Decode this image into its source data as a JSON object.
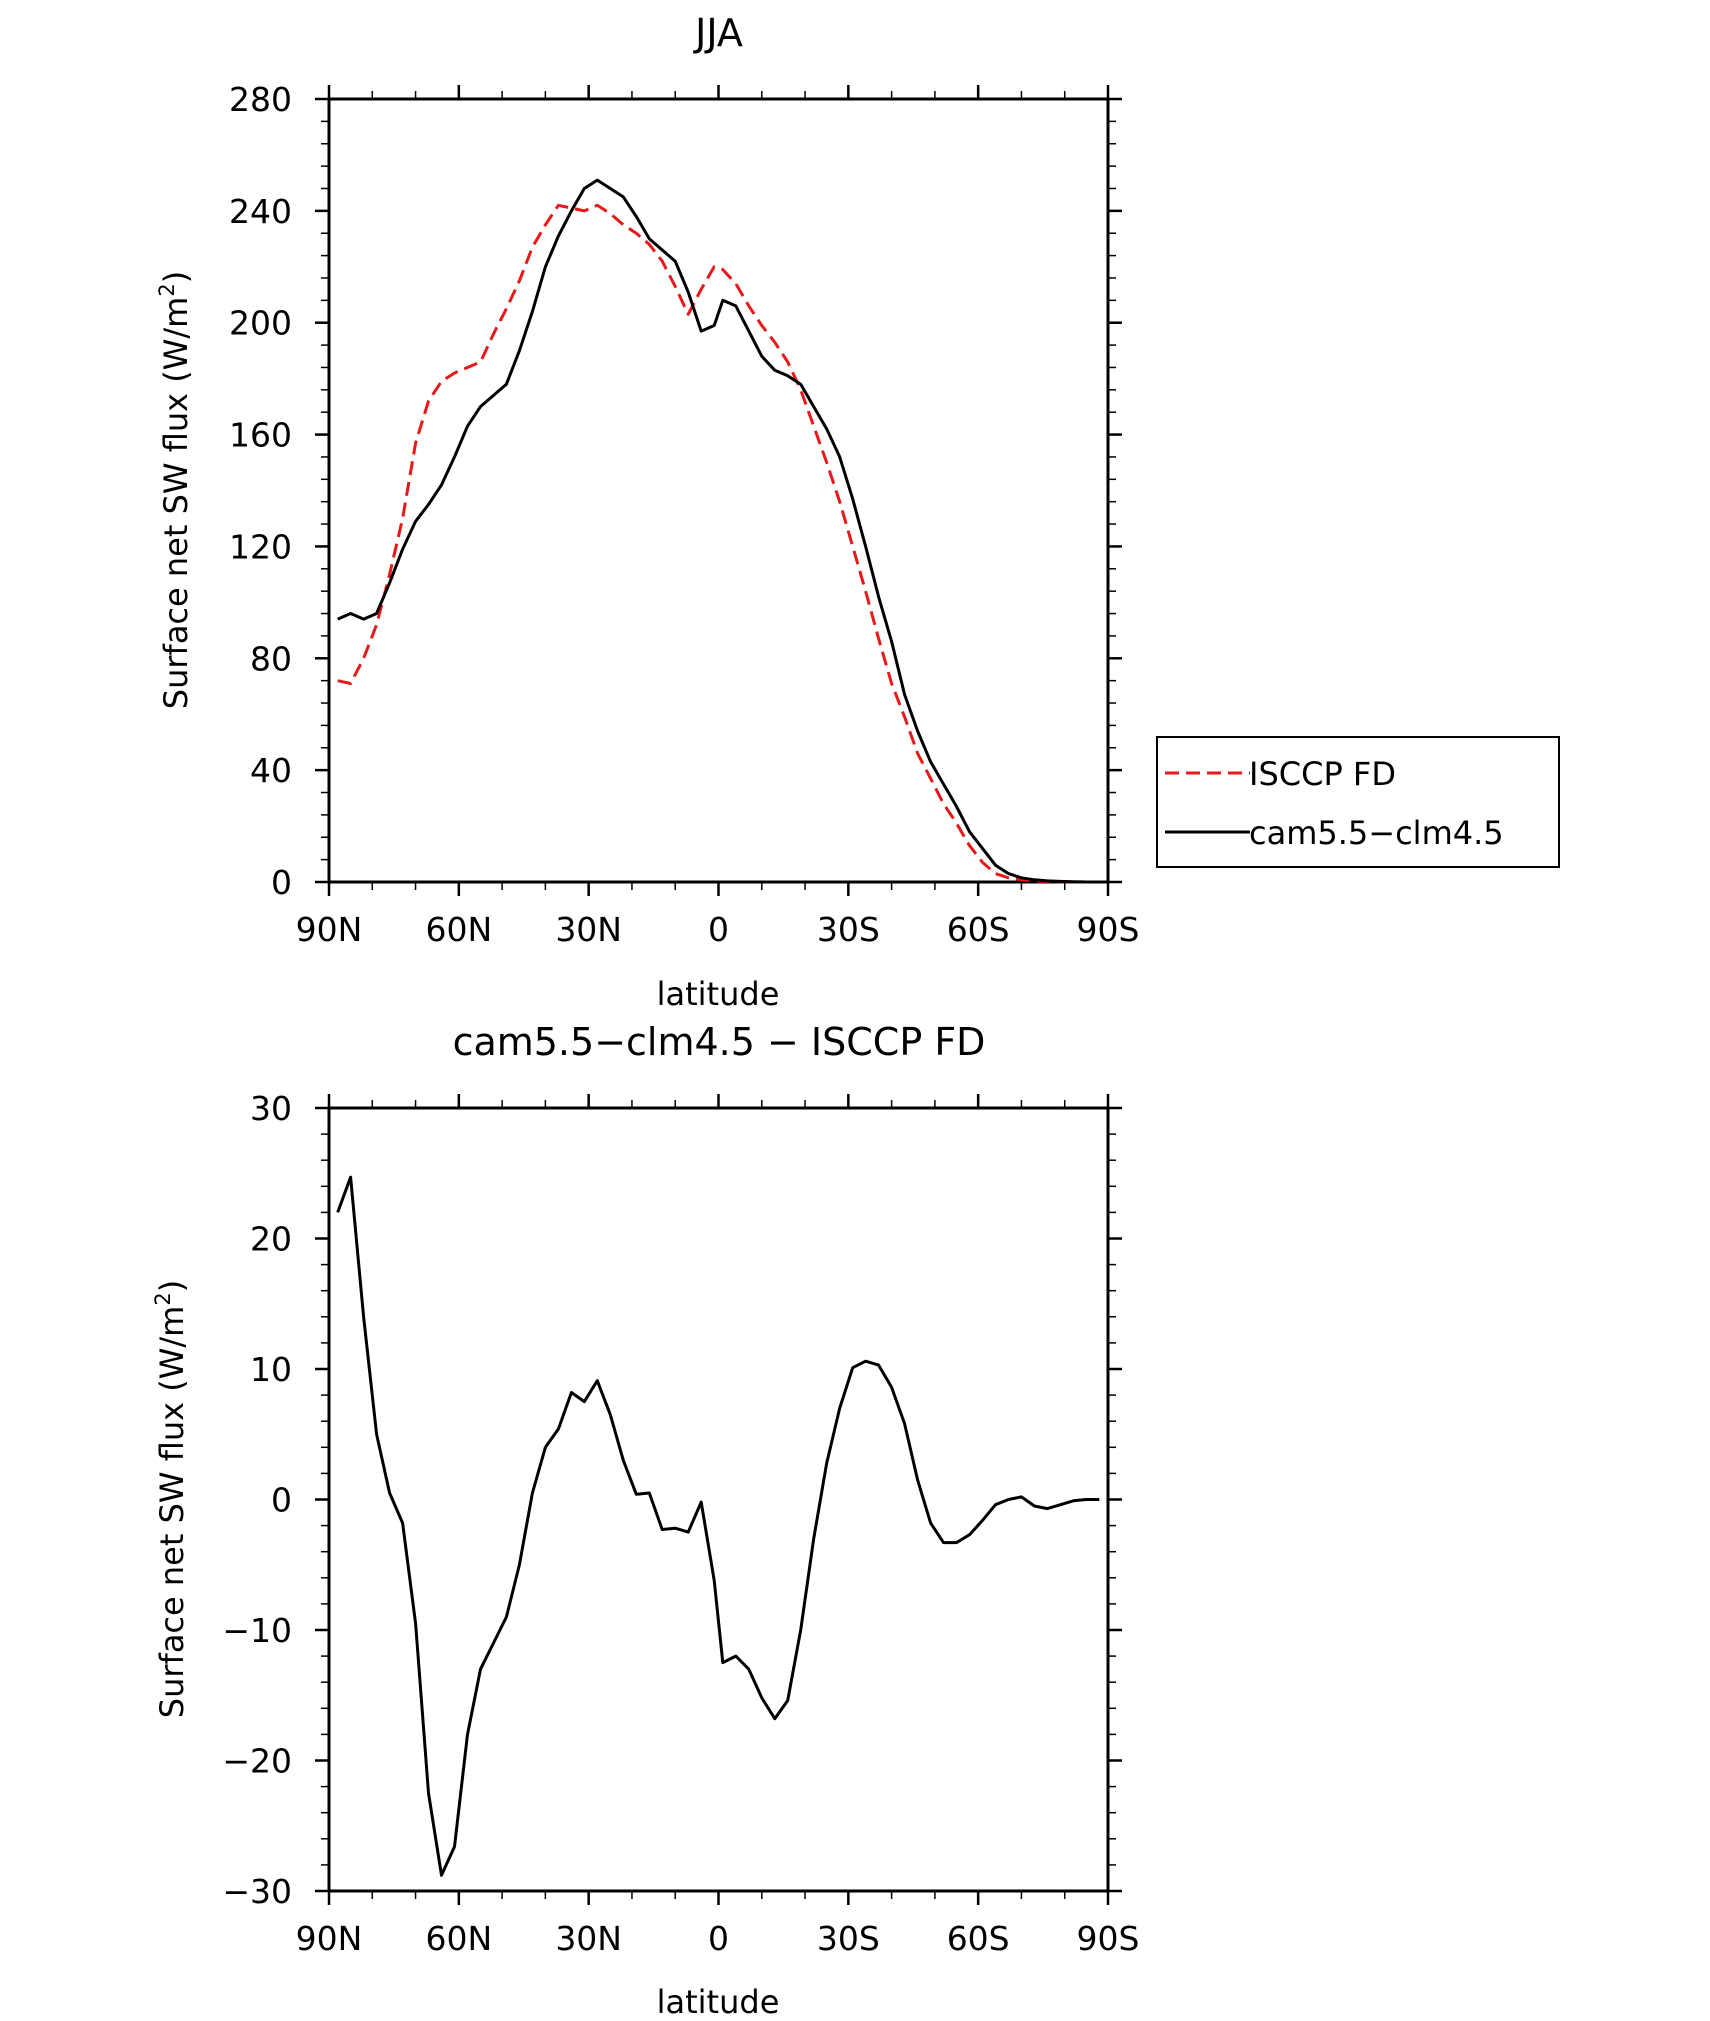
{
  "chart_data": [
    {
      "type": "line",
      "title": "JJA",
      "xlabel": "latitude",
      "ylabel": "Surface net SW flux (W/m²)",
      "ylabel_main": "Surface net SW flux (W/m",
      "ylabel_sup": "2",
      "ylabel_close": ")",
      "xlim": [
        90,
        -90
      ],
      "ylim": [
        0,
        280
      ],
      "x_ticks": [
        90,
        60,
        30,
        0,
        -30,
        -60,
        -90
      ],
      "x_tick_labels": [
        "90N",
        "60N",
        "30N",
        "0",
        "30S",
        "60S",
        "90S"
      ],
      "y_ticks": [
        0,
        40,
        80,
        120,
        160,
        200,
        240,
        280
      ],
      "y_tick_labels": [
        "0",
        "40",
        "80",
        "120",
        "160",
        "200",
        "240",
        "280"
      ],
      "legend": {
        "placement": "right",
        "entries": [
          "ISCCP FD",
          "cam5.5−clm4.5"
        ]
      },
      "series": [
        {
          "name": "ISCCP FD",
          "color": "#e8191a",
          "dash": "dashed",
          "x": [
            88,
            85,
            82,
            79,
            76,
            73,
            70,
            67,
            64,
            61,
            58,
            55,
            52,
            49,
            46,
            43,
            40,
            37,
            34,
            31,
            28,
            25,
            22,
            19,
            16,
            13,
            10,
            7,
            4,
            1,
            -1,
            -4,
            -7,
            -10,
            -13,
            -16,
            -19,
            -22,
            -25,
            -28,
            -31,
            -34,
            -37,
            -40,
            -43,
            -46,
            -49,
            -52,
            -55,
            -58,
            -61,
            -64,
            -67,
            -70,
            -73,
            -76,
            -79,
            -82,
            -85,
            -88
          ],
          "y": [
            72,
            71,
            80,
            92,
            110,
            130,
            157,
            172,
            179,
            182,
            184,
            186,
            196,
            205,
            215,
            227,
            235,
            242,
            241,
            240,
            242,
            239,
            235,
            232,
            228,
            222,
            213,
            203,
            212,
            220,
            219,
            214,
            206,
            199,
            193,
            186,
            176,
            163,
            150,
            136,
            120,
            104,
            87,
            71,
            59,
            46,
            37,
            28,
            21,
            13,
            7,
            3,
            1.5,
            0.8,
            0.4,
            0.2,
            0.1,
            0.1,
            0,
            0
          ]
        },
        {
          "name": "cam5.5−clm4.5",
          "color": "#000000",
          "dash": "solid",
          "x": [
            88,
            85,
            82,
            79,
            76,
            73,
            70,
            67,
            64,
            61,
            58,
            55,
            52,
            49,
            46,
            43,
            40,
            37,
            34,
            31,
            28,
            25,
            22,
            19,
            16,
            13,
            10,
            7,
            4,
            1,
            -1,
            -4,
            -7,
            -10,
            -13,
            -16,
            -19,
            -22,
            -25,
            -28,
            -31,
            -34,
            -37,
            -40,
            -43,
            -46,
            -49,
            -52,
            -55,
            -58,
            -61,
            -64,
            -67,
            -70,
            -73,
            -76,
            -79,
            -82,
            -85,
            -88
          ],
          "y": [
            94,
            96,
            94,
            96,
            107,
            119,
            129,
            135,
            142,
            152,
            163,
            170,
            174,
            178,
            190,
            204,
            220,
            231,
            240,
            248,
            251,
            248,
            245,
            238,
            230,
            226,
            222,
            211,
            197,
            199,
            208,
            206,
            197,
            188,
            183,
            181,
            178,
            170,
            162,
            152,
            137,
            120,
            102,
            86,
            67,
            54,
            43,
            35,
            27,
            18,
            12,
            6,
            3,
            1.5,
            0.8,
            0.4,
            0.2,
            0.1,
            0,
            0
          ]
        }
      ]
    },
    {
      "type": "line",
      "title": "cam5.5−clm4.5 − ISCCP FD",
      "xlabel": "latitude",
      "ylabel": "Surface net SW flux (W/m²)",
      "ylabel_main": "Surface net SW flux (W/m",
      "ylabel_sup": "2",
      "ylabel_close": ")",
      "xlim": [
        90,
        -90
      ],
      "ylim": [
        -30,
        30
      ],
      "x_ticks": [
        90,
        60,
        30,
        0,
        -30,
        -60,
        -90
      ],
      "x_tick_labels": [
        "90N",
        "60N",
        "30N",
        "0",
        "30S",
        "60S",
        "90S"
      ],
      "y_ticks": [
        -30,
        -20,
        -10,
        0,
        10,
        20,
        30
      ],
      "y_tick_labels": [
        "−30",
        "−20",
        "−10",
        "0",
        "10",
        "20",
        "30"
      ],
      "series": [
        {
          "color": "#000000",
          "dash": "solid",
          "x": [
            88,
            85,
            82,
            79,
            76,
            73,
            70,
            67,
            64,
            61,
            58,
            55,
            52,
            49,
            46,
            43,
            40,
            37,
            34,
            31,
            28,
            25,
            22,
            19,
            16,
            13,
            10,
            7,
            4,
            1,
            -1,
            -4,
            -7,
            -10,
            -13,
            -16,
            -19,
            -22,
            -25,
            -28,
            -31,
            -34,
            -37,
            -40,
            -43,
            -46,
            -49,
            -52,
            -55,
            -58,
            -61,
            -64,
            -67,
            -70,
            -73,
            -76,
            -79,
            -82,
            -85,
            -88
          ],
          "y": [
            22,
            24.7,
            14,
            5,
            0.5,
            -1.8,
            -9.5,
            -22.5,
            -28.8,
            -26.6,
            -18,
            -13,
            -11,
            -9,
            -5,
            0.5,
            4,
            5.4,
            8.2,
            7.5,
            9.1,
            6.5,
            3,
            0.4,
            0.5,
            -2.3,
            -2.2,
            -2.5,
            -0.2,
            -6.2,
            -12.5,
            -12,
            -13,
            -15.2,
            -16.8,
            -15.4,
            -10,
            -3,
            2.8,
            7,
            10.1,
            10.6,
            10.3,
            8.6,
            5.8,
            1.5,
            -1.8,
            -3.3,
            -3.3,
            -2.7,
            -1.6,
            -0.4,
            0,
            0.2,
            -0.5,
            -0.7,
            -0.4,
            -0.1,
            0,
            0
          ]
        }
      ]
    }
  ]
}
